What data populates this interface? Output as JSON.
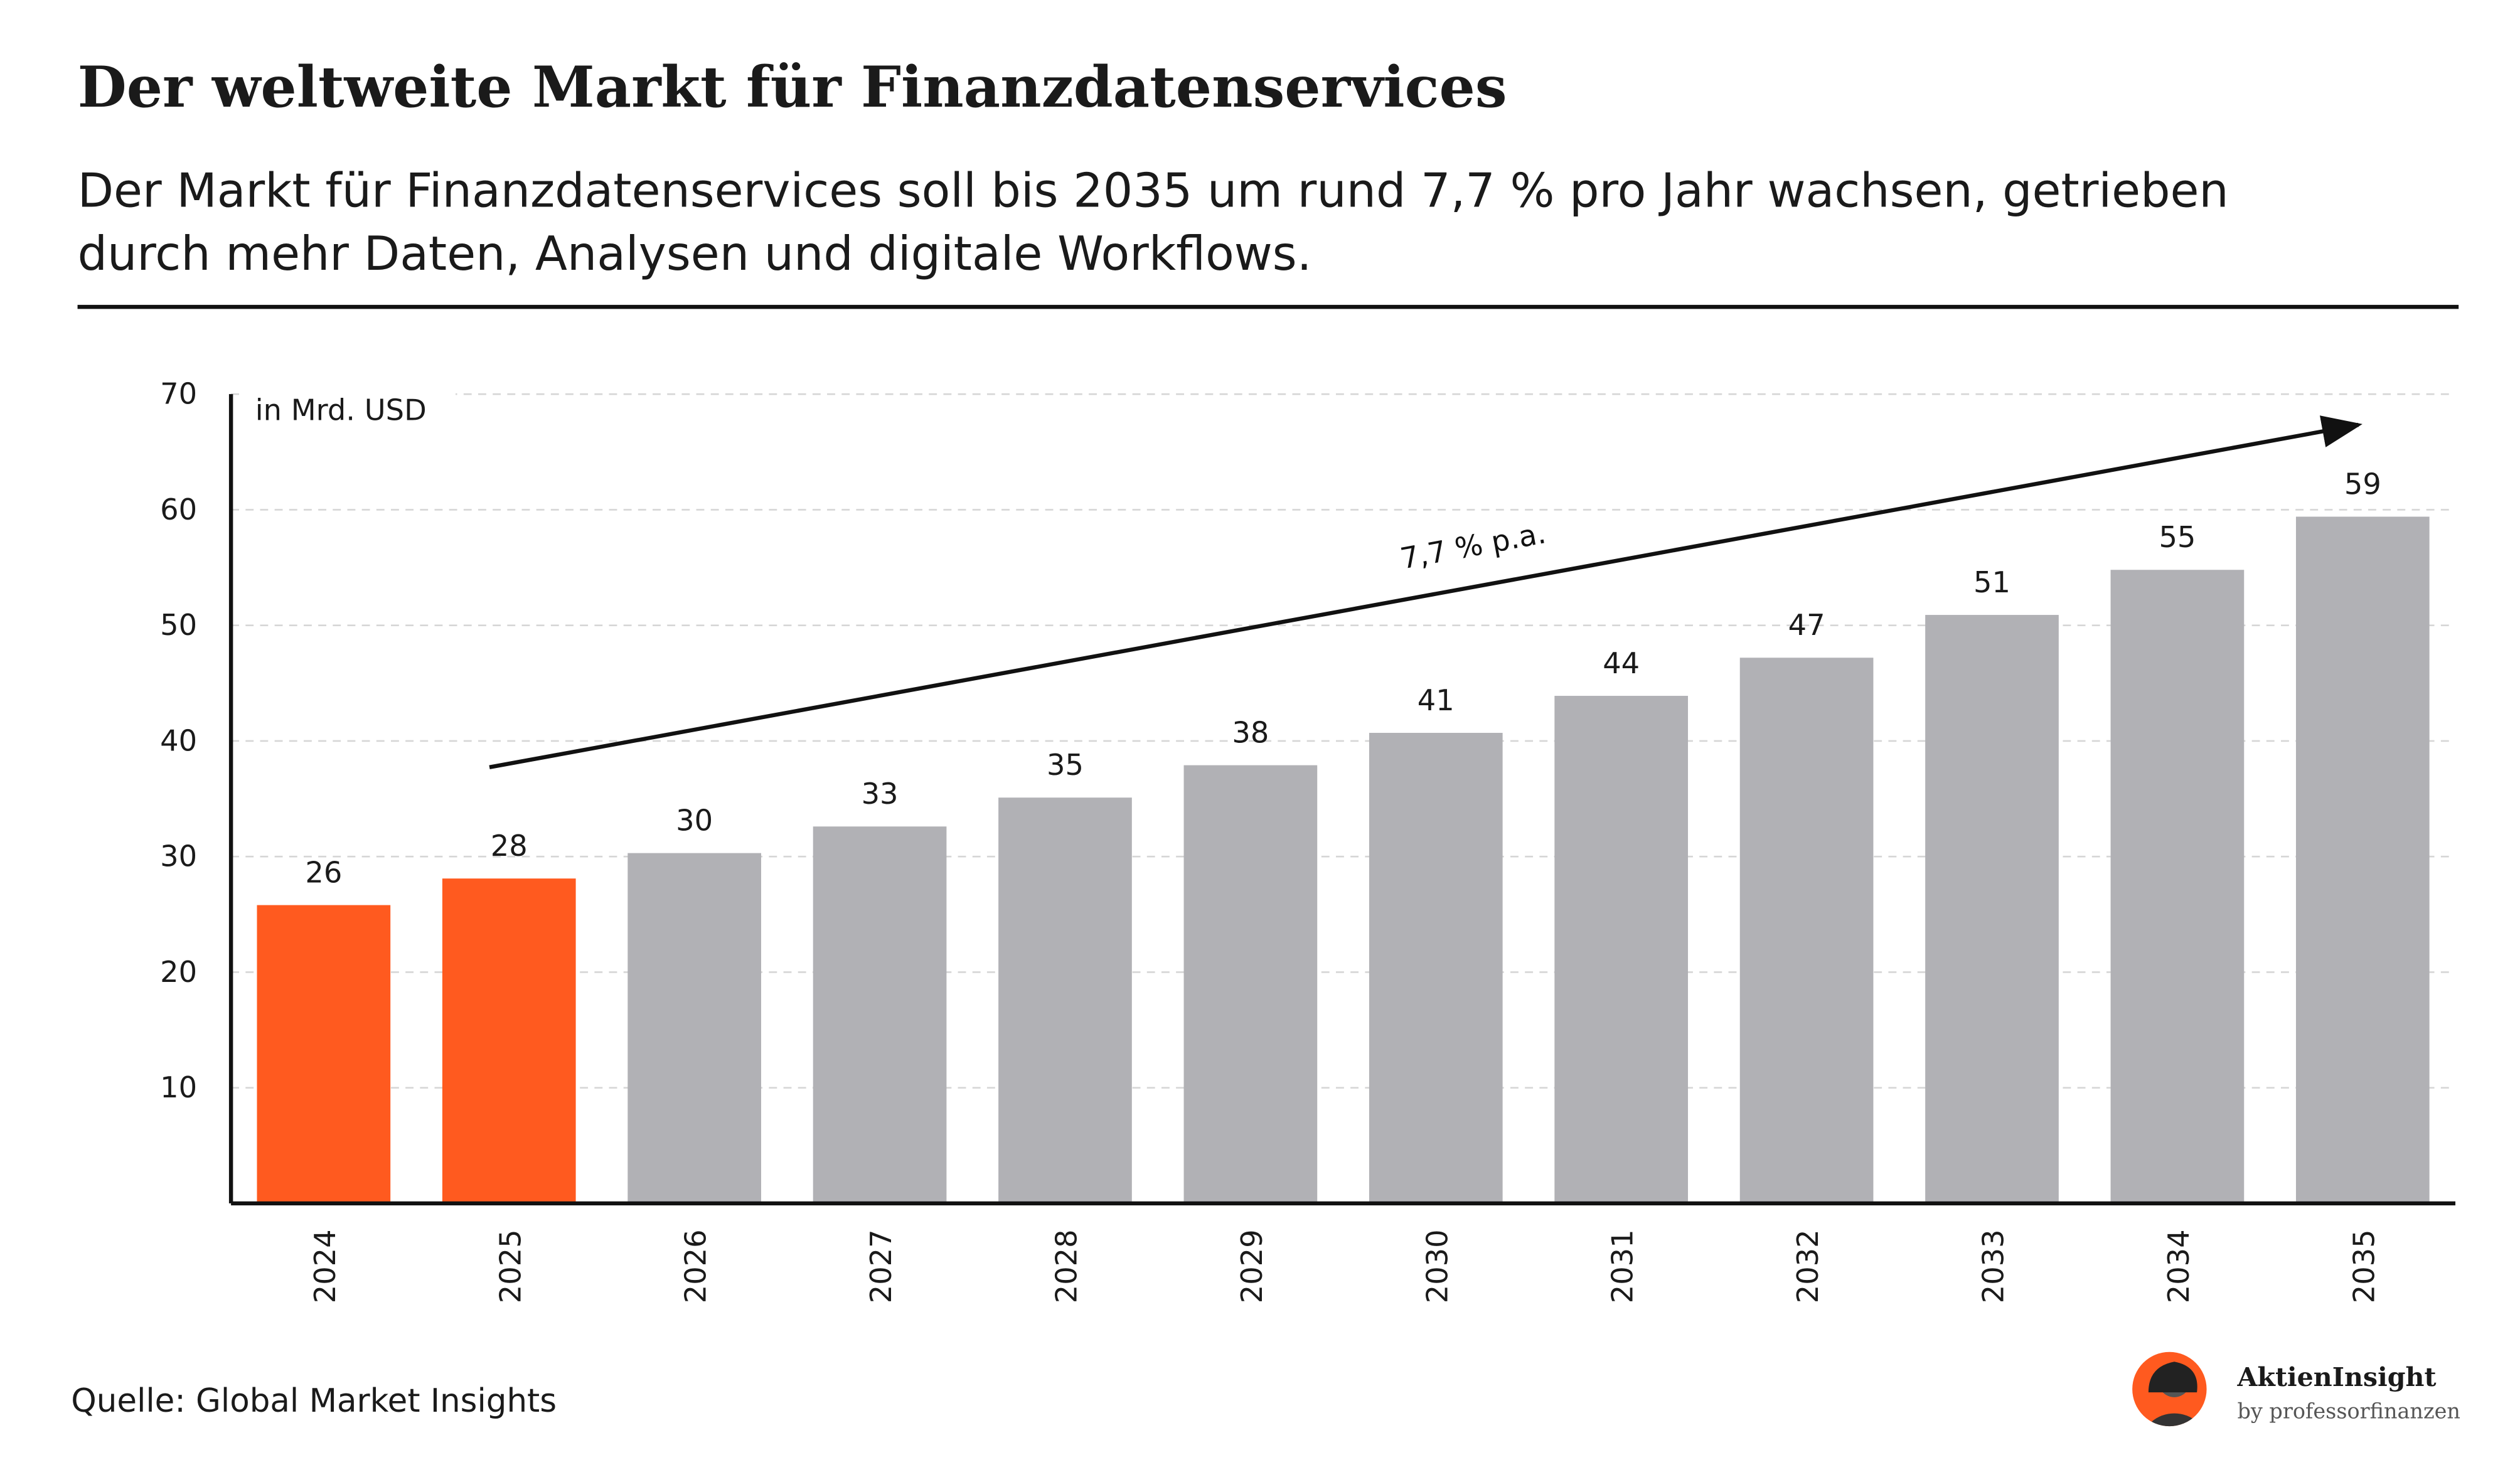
{
  "chart_data": {
    "type": "bar",
    "title": "Der weltweite Markt für Finanzdatenservices",
    "subtitle": [
      "Der Markt für Finanzdatenservices soll bis 2035 um rund 7,7 % pro Jahr wachsen, getrieben",
      "durch mehr Daten, Analysen und digitale Workflows."
    ],
    "y_axis_label": "in Mrd. USD",
    "annotation": "7,7 % p.a.",
    "source": "Quelle: Global Market Insights",
    "brand": {
      "name": "AktienInsight",
      "by": "by professorfinanzen"
    },
    "categories": [
      "2024",
      "2025",
      "2026",
      "2027",
      "2028",
      "2029",
      "2030",
      "2031",
      "2032",
      "2033",
      "2034",
      "2035"
    ],
    "values": [
      25.8,
      28.1,
      30.3,
      32.6,
      35.1,
      37.9,
      40.7,
      43.9,
      47.2,
      50.9,
      54.8,
      59.4
    ],
    "value_labels": [
      "26",
      "28",
      "30",
      "33",
      "35",
      "38",
      "41",
      "44",
      "47",
      "51",
      "55",
      "59"
    ],
    "colors": [
      "#ff5a1f",
      "#ff5a1f",
      "#b1b1b5",
      "#b1b1b5",
      "#b1b1b5",
      "#b1b1b5",
      "#b1b1b5",
      "#b1b1b5",
      "#b1b1b5",
      "#b1b1b5",
      "#b1b1b5",
      "#b1b1b5"
    ],
    "ylim": [
      0,
      70
    ],
    "yticks": [
      10,
      20,
      30,
      40,
      50,
      60,
      70
    ],
    "grid": true
  }
}
